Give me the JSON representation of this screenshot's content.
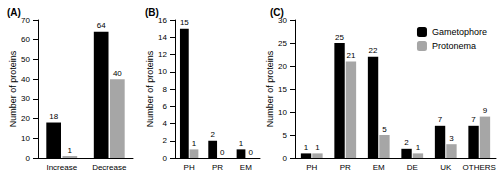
{
  "chart_data": [
    {
      "type": "bar",
      "title": "(A)",
      "y_label": "Number of proteins",
      "categories": [
        "Increase",
        "Decrease"
      ],
      "series": [
        {
          "name": "Gametophore",
          "color": "#000000",
          "values": [
            18,
            64
          ]
        },
        {
          "name": "Protonema",
          "color": "#a6a6a6",
          "values": [
            1,
            40
          ]
        }
      ],
      "ylim": [
        0,
        70
      ],
      "yticks": [
        0,
        10,
        20,
        30,
        40,
        50,
        60,
        70
      ],
      "grid": false,
      "data_labels": true
    },
    {
      "type": "bar",
      "title": "(B)",
      "y_label": "Number of proteins",
      "categories": [
        "PH",
        "PR",
        "EM"
      ],
      "series": [
        {
          "name": "Gametophore",
          "color": "#000000",
          "values": [
            15,
            2,
            1
          ]
        },
        {
          "name": "Protonema",
          "color": "#a6a6a6",
          "values": [
            1,
            0,
            0
          ]
        }
      ],
      "ylim": [
        0,
        16
      ],
      "yticks": [
        0,
        2,
        4,
        6,
        8,
        10,
        12,
        14,
        16
      ],
      "grid": false,
      "data_labels": true
    },
    {
      "type": "bar",
      "title": "(C)",
      "y_label": "Number of proteins",
      "categories": [
        "PH",
        "PR",
        "EM",
        "DE",
        "UK",
        "OTHERS"
      ],
      "series": [
        {
          "name": "Gametophore",
          "color": "#000000",
          "values": [
            1,
            25,
            22,
            2,
            7,
            7
          ]
        },
        {
          "name": "Protonema",
          "color": "#a6a6a6",
          "values": [
            1,
            21,
            5,
            1,
            3,
            9
          ]
        }
      ],
      "ylim": [
        0,
        30
      ],
      "yticks": [
        0,
        5,
        10,
        15,
        20,
        25,
        30
      ],
      "grid": false,
      "data_labels": true,
      "legend": "upper right"
    }
  ]
}
